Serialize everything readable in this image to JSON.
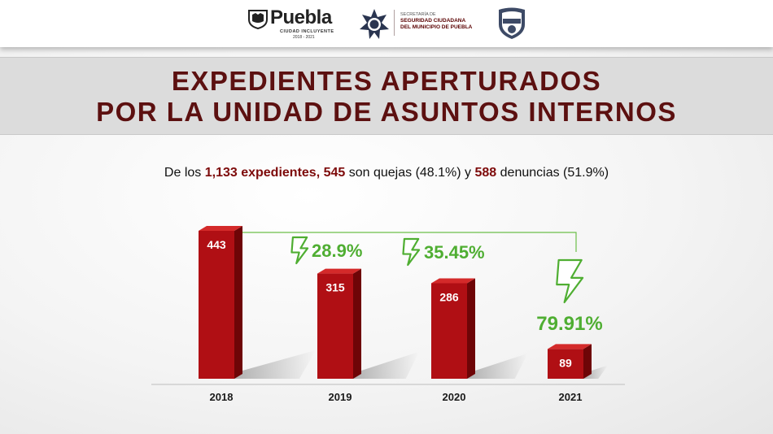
{
  "header": {
    "puebla_word": "Puebla",
    "puebla_tagline": "CIUDAD INCLUYENTE",
    "puebla_years": "2018 - 2021",
    "secretaria_line1": "SECRETARÍA DE",
    "secretaria_line2": "SEGURIDAD CIUDADANA",
    "secretaria_line3": "DEL MUNICIPIO DE PUEBLA"
  },
  "title": {
    "line1": "EXPEDIENTES APERTURADOS",
    "line2": "POR LA UNIDAD DE ASUNTOS INTERNOS"
  },
  "subtitle": {
    "part1": "De los ",
    "total": "1,133 expedientes,",
    "part2": " ",
    "quejas": "545",
    "part3": " son quejas (48.1%) y ",
    "denuncias": "588",
    "part4": " denuncias (51.9%)"
  },
  "colors": {
    "bar_front": "#b00f14",
    "bar_side": "#6e0507",
    "bar_top": "#d42a2a",
    "accent_green": "#4fae32",
    "title_color": "#5c1010"
  },
  "chart_data": {
    "type": "bar",
    "categories": [
      "2018",
      "2019",
      "2020",
      "2021"
    ],
    "values": [
      443,
      315,
      286,
      89
    ],
    "data_labels": [
      "443",
      "315",
      "286",
      "89"
    ],
    "annotations": [
      {
        "category": "2019",
        "text": "28.9%",
        "icon": "lightning-down-icon"
      },
      {
        "category": "2020",
        "text": "35.45%",
        "icon": "lightning-down-icon"
      },
      {
        "category": "2021",
        "text": "79.91%",
        "icon": "lightning-down-icon"
      }
    ],
    "ylim": [
      0,
      443
    ],
    "grid": false,
    "legend": "none"
  }
}
